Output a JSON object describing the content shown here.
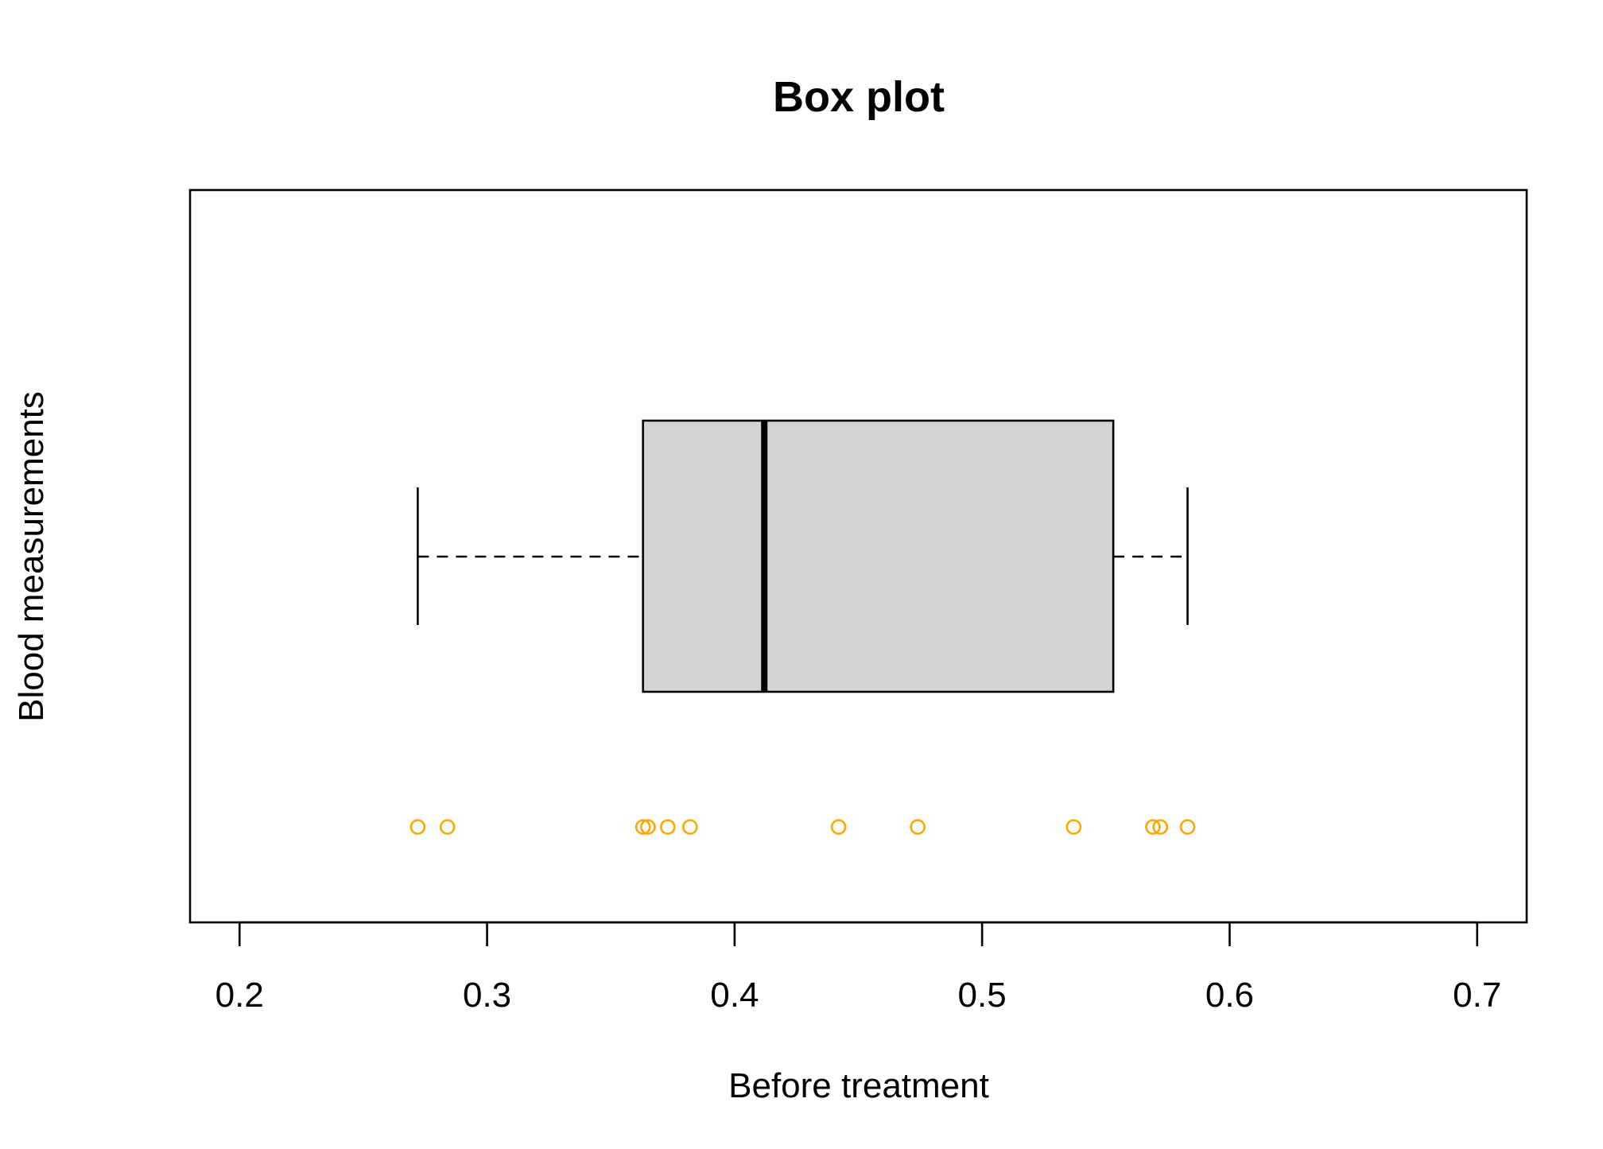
{
  "chart_data": {
    "type": "boxplot",
    "orientation": "horizontal",
    "title": "Box plot",
    "xlabel": "Before treatment",
    "ylabel": "Blood measurements",
    "xlim": [
      0.18,
      0.72
    ],
    "x_ticks": [
      0.2,
      0.3,
      0.4,
      0.5,
      0.6,
      0.7
    ],
    "x_tick_labels": [
      "0.2",
      "0.3",
      "0.4",
      "0.5",
      "0.6",
      "0.7"
    ],
    "grid": false,
    "box": {
      "whisker_low": 0.272,
      "q1": 0.363,
      "median": 0.412,
      "q3": 0.553,
      "whisker_high": 0.583,
      "fill_color": "#d3d3d3",
      "whisker_style": "dashed"
    },
    "points": {
      "color": "#ffa500",
      "marker": "open-circle",
      "values": [
        0.272,
        0.284,
        0.363,
        0.365,
        0.373,
        0.382,
        0.442,
        0.474,
        0.537,
        0.569,
        0.572,
        0.583
      ]
    }
  }
}
